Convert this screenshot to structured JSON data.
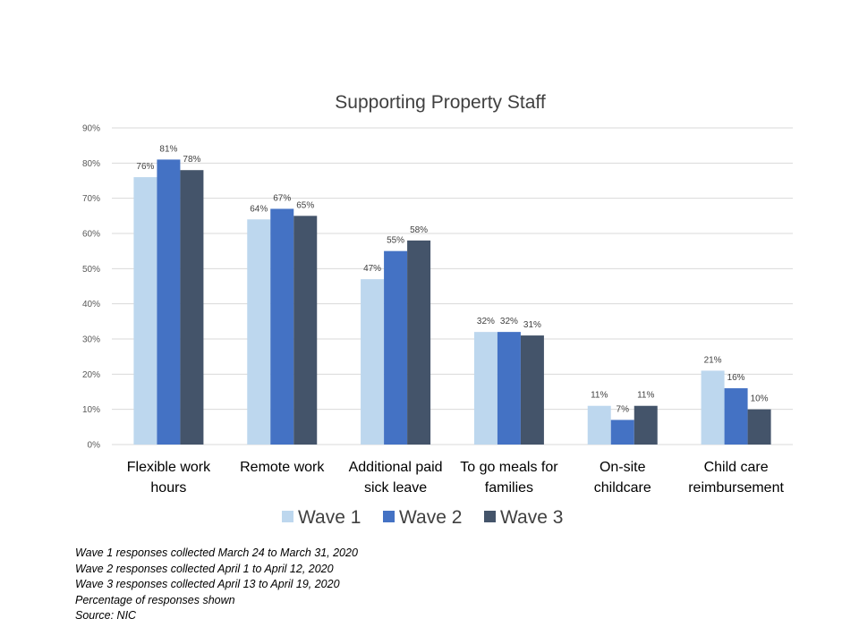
{
  "chart_data": {
    "type": "bar",
    "title": "Supporting Property Staff",
    "xlabel": "",
    "ylabel": "",
    "ylim": [
      0,
      90
    ],
    "y_ticks": [
      "0%",
      "10%",
      "20%",
      "30%",
      "40%",
      "50%",
      "60%",
      "70%",
      "80%",
      "90%"
    ],
    "y_tick_values": [
      0,
      10,
      20,
      30,
      40,
      50,
      60,
      70,
      80,
      90
    ],
    "grid": true,
    "legend_position": "bottom",
    "categories": [
      [
        "Flexible work",
        "hours"
      ],
      [
        "Remote work"
      ],
      [
        "Additional paid",
        "sick leave"
      ],
      [
        "To go meals for",
        "families"
      ],
      [
        "On-site",
        "childcare"
      ],
      [
        "Child care",
        "reimbursement"
      ]
    ],
    "series": [
      {
        "name": "Wave 1",
        "color": "#bdd7ee",
        "values": [
          76,
          64,
          47,
          32,
          11,
          21
        ],
        "labels": [
          "76%",
          "64%",
          "47%",
          "32%",
          "11%",
          "21%"
        ]
      },
      {
        "name": "Wave 2",
        "color": "#4472c4",
        "values": [
          81,
          67,
          55,
          32,
          7,
          16
        ],
        "labels": [
          "81%",
          "67%",
          "55%",
          "32%",
          "7%",
          "16%"
        ]
      },
      {
        "name": "Wave 3",
        "color": "#44546a",
        "values": [
          78,
          65,
          58,
          31,
          11,
          10
        ],
        "labels": [
          "78%",
          "65%",
          "58%",
          "31%",
          "11%",
          "10%"
        ]
      }
    ]
  },
  "notes": [
    "Wave 1 responses collected March 24 to March 31, 2020",
    "Wave 2 responses collected April 1 to April 12, 2020",
    "Wave 3 responses collected April 13 to April 19, 2020",
    "Percentage of responses shown",
    "Source: NIC"
  ]
}
